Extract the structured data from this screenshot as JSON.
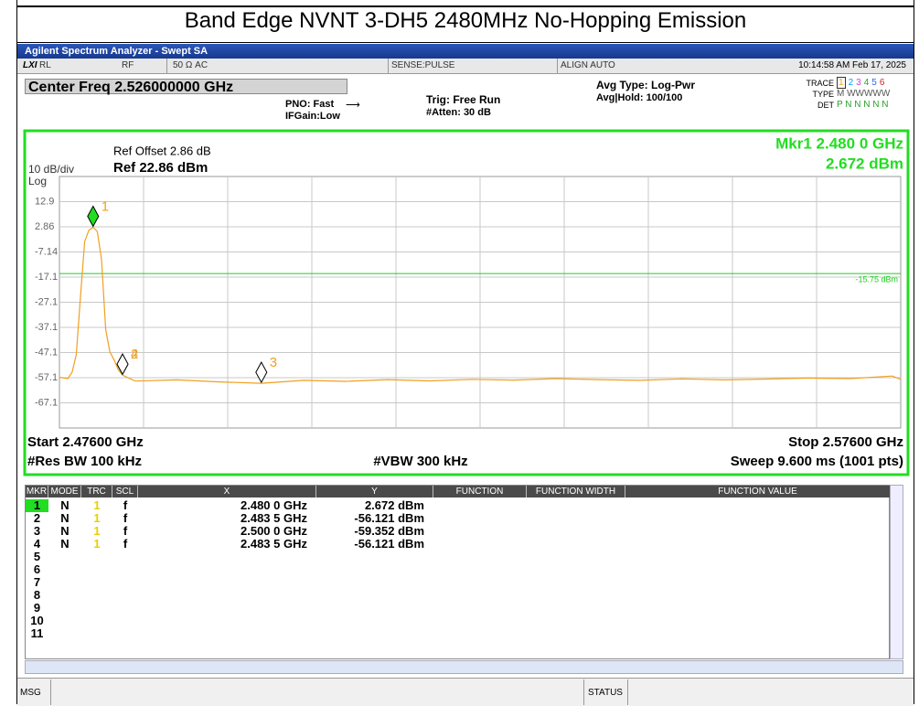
{
  "window": {
    "title": "Band Edge NVNT 3-DH5 2480MHz No-Hopping Emission",
    "app_title": "Agilent Spectrum Analyzer - Swept SA"
  },
  "status_bar": {
    "ref_level": "RL",
    "input": "RF",
    "impedance": "50 Ω   AC",
    "sense": "SENSE:PULSE",
    "align": "ALIGN AUTO",
    "datetime": "10:14:58 AM Feb 17, 2025"
  },
  "settings": {
    "center_freq": "Center Freq 2.526000000 GHz",
    "pno": "PNO: Fast",
    "ifgain": "IFGain:Low",
    "trig": "Trig: Free Run",
    "atten": "#Atten: 30 dB",
    "avg_type": "Avg Type: Log-Pwr",
    "avg_hold": "Avg|Hold: 100/100",
    "trace_label": "TRACE",
    "trace_nums": [
      "1",
      "2",
      "3",
      "4",
      "5",
      "6"
    ],
    "type_label": "TYPE",
    "type_value": "M WWWWW",
    "det_label": "DET",
    "det_value": "P N N N N N"
  },
  "chart_data": {
    "type": "line",
    "ref_offset": "Ref Offset 2.86 dB",
    "ref_level": "Ref 22.86 dBm",
    "scale": "10 dB/div",
    "scale_type": "Log",
    "marker_readout": [
      "Mkr1 2.480 0 GHz",
      "2.672 dBm"
    ],
    "start": "Start 2.47600 GHz",
    "stop": "Stop 2.57600 GHz",
    "rbw": "#Res BW 100 kHz",
    "vbw": "#VBW 300 kHz",
    "sweep": "Sweep  9.600 ms (1001 pts)",
    "xlim": [
      2.476,
      2.576
    ],
    "ylim": [
      -77.14,
      22.86
    ],
    "xticks": [
      2.486,
      2.496,
      2.506,
      2.516,
      2.526,
      2.536,
      2.546,
      2.556,
      2.566
    ],
    "yticks": [
      {
        "value": 12.86,
        "label": "12.9"
      },
      2.86,
      -7.14,
      {
        "value": -17.14,
        "label": "-17.1"
      },
      {
        "value": -27.14,
        "label": "-27.1"
      },
      {
        "value": -37.14,
        "label": "-37.1"
      },
      {
        "value": -47.14,
        "label": "-47.1"
      },
      {
        "value": -57.14,
        "label": "-57.1"
      },
      {
        "value": -67.14,
        "label": "-67.1"
      }
    ],
    "grid": true,
    "x": [
      2.476,
      2.477,
      2.4775,
      2.478,
      2.4785,
      2.479,
      2.4795,
      2.48,
      2.4805,
      2.481,
      2.4815,
      2.482,
      2.4825,
      2.483,
      2.4835,
      2.485,
      2.49,
      2.495,
      2.5,
      2.505,
      2.51,
      2.515,
      2.52,
      2.525,
      2.53,
      2.535,
      2.54,
      2.545,
      2.55,
      2.555,
      2.56,
      2.565,
      2.57,
      2.575,
      2.576
    ],
    "series": [
      {
        "color": "#f0a020",
        "values": [
          -57,
          -57.5,
          -55,
          -48,
          -25,
          -3,
          1.5,
          2.672,
          1,
          -10,
          -38,
          -47,
          -50,
          -54,
          -56.121,
          -58.5,
          -58,
          -58.8,
          -59.352,
          -58.2,
          -58.6,
          -57.9,
          -58.4,
          -57.8,
          -58.1,
          -57.5,
          -57.9,
          -58.2,
          -57.6,
          -58,
          -57.7,
          -57.3,
          -57.5,
          -56.5,
          -57.8
        ]
      }
    ],
    "display_line": {
      "value": -15.75,
      "label": "-15.75 dBm"
    },
    "markers": [
      {
        "label": "1",
        "x": 2.48,
        "y": 2.672
      },
      {
        "label": "2",
        "x": 2.4835,
        "y": -56.121
      },
      {
        "label": "3",
        "x": 2.5,
        "y": -59.352
      },
      {
        "label": "4",
        "x": 2.4835,
        "y": -56.121
      }
    ]
  },
  "marker_table": {
    "headers": [
      "MKR",
      "MODE",
      "TRC",
      "SCL",
      "X",
      "Y",
      "FUNCTION",
      "FUNCTION WIDTH",
      "FUNCTION VALUE"
    ],
    "rows": [
      [
        "1",
        "N",
        "1",
        "f",
        "2.480 0 GHz",
        "2.672 dBm"
      ],
      [
        "2",
        "N",
        "1",
        "f",
        "2.483 5 GHz",
        "-56.121 dBm"
      ],
      [
        "3",
        "N",
        "1",
        "f",
        "2.500 0 GHz",
        "-59.352 dBm"
      ],
      [
        "4",
        "N",
        "1",
        "f",
        "2.483 5 GHz",
        "-56.121 dBm"
      ],
      [
        "5"
      ],
      [
        "6"
      ],
      [
        "7"
      ],
      [
        "8"
      ],
      [
        "9"
      ],
      [
        "10"
      ],
      [
        "11"
      ]
    ]
  },
  "footer": {
    "msg": "MSG",
    "status": "STATUS"
  }
}
